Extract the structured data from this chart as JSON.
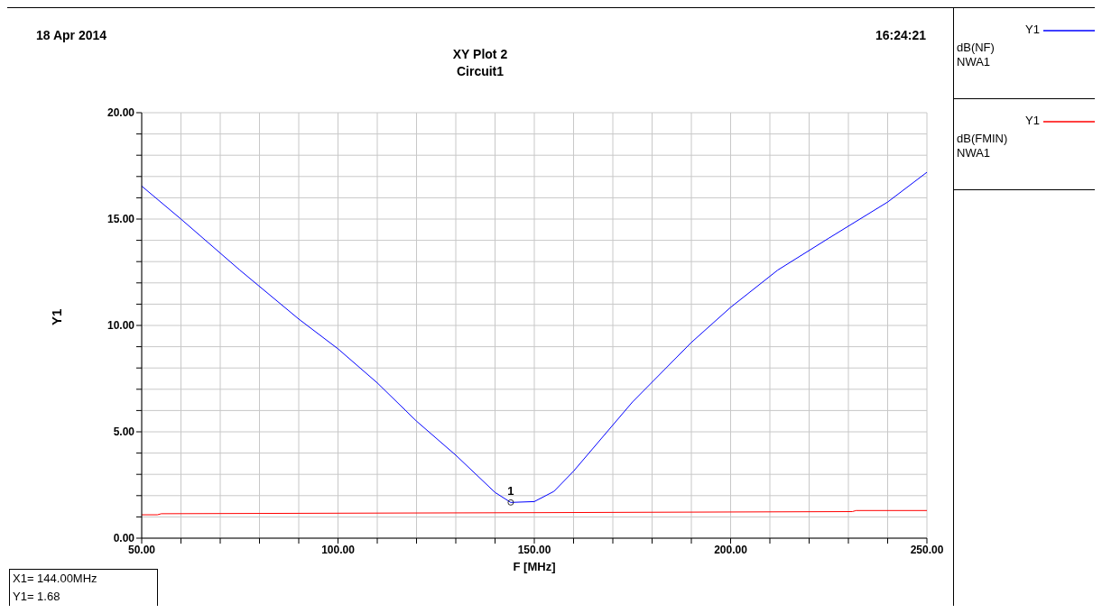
{
  "chart_data": {
    "type": "line",
    "title": "XY Plot 2",
    "subtitle": "Circuit1",
    "xlabel": "F [MHz]",
    "ylabel": "Y1",
    "xlim": [
      50,
      250
    ],
    "ylim": [
      0,
      20
    ],
    "xticks": [
      {
        "value": 50,
        "label": "50.00"
      },
      {
        "value": 60,
        "label": null
      },
      {
        "value": 70,
        "label": null
      },
      {
        "value": 80,
        "label": null
      },
      {
        "value": 90,
        "label": null
      },
      {
        "value": 100,
        "label": "100.00"
      },
      {
        "value": 110,
        "label": null
      },
      {
        "value": 120,
        "label": null
      },
      {
        "value": 130,
        "label": null
      },
      {
        "value": 140,
        "label": null
      },
      {
        "value": 150,
        "label": "150.00"
      },
      {
        "value": 160,
        "label": null
      },
      {
        "value": 170,
        "label": null
      },
      {
        "value": 180,
        "label": null
      },
      {
        "value": 190,
        "label": null
      },
      {
        "value": 200,
        "label": "200.00"
      },
      {
        "value": 210,
        "label": null
      },
      {
        "value": 220,
        "label": null
      },
      {
        "value": 230,
        "label": null
      },
      {
        "value": 240,
        "label": null
      },
      {
        "value": 250,
        "label": "250.00"
      }
    ],
    "yticks": [
      {
        "value": 0,
        "label": "0.00"
      },
      {
        "value": 1,
        "label": null
      },
      {
        "value": 2,
        "label": null
      },
      {
        "value": 3,
        "label": null
      },
      {
        "value": 4,
        "label": null
      },
      {
        "value": 5,
        "label": "5.00"
      },
      {
        "value": 6,
        "label": null
      },
      {
        "value": 7,
        "label": null
      },
      {
        "value": 8,
        "label": null
      },
      {
        "value": 9,
        "label": null
      },
      {
        "value": 10,
        "label": "10.00"
      },
      {
        "value": 11,
        "label": null
      },
      {
        "value": 12,
        "label": null
      },
      {
        "value": 13,
        "label": null
      },
      {
        "value": 14,
        "label": null
      },
      {
        "value": 15,
        "label": "15.00"
      },
      {
        "value": 16,
        "label": null
      },
      {
        "value": 17,
        "label": null
      },
      {
        "value": 18,
        "label": null
      },
      {
        "value": 19,
        "label": null
      },
      {
        "value": 20,
        "label": "20.00"
      }
    ],
    "grid": true,
    "legend": "right",
    "marker": "none",
    "line_style": "solid",
    "series": [
      {
        "name": "dB(NF)",
        "color": "#0000ff",
        "x": [
          50,
          60,
          75,
          90,
          100,
          110,
          120,
          130,
          140,
          144,
          150,
          155,
          160,
          175,
          190,
          200,
          212,
          225,
          240,
          250
        ],
        "values": [
          16.55,
          15.0,
          12.6,
          10.3,
          8.9,
          7.3,
          5.5,
          3.9,
          2.15,
          1.68,
          1.72,
          2.2,
          3.15,
          6.4,
          9.2,
          10.85,
          12.6,
          14.1,
          15.8,
          17.2
        ]
      },
      {
        "name": "dB(FMIN)",
        "color": "#ff0000",
        "x": [
          50,
          54,
          55,
          150,
          231,
          232,
          250
        ],
        "values": [
          1.1,
          1.1,
          1.15,
          1.2,
          1.25,
          1.3,
          1.3
        ]
      }
    ],
    "annotations": [
      "18 Apr 2014",
      "16:24:21",
      "NWA1",
      "NWA1",
      "X1= 144.00MHz",
      "Y1= 1.68",
      {
        "text": "1",
        "x": 144,
        "y": 1.68
      }
    ]
  }
}
